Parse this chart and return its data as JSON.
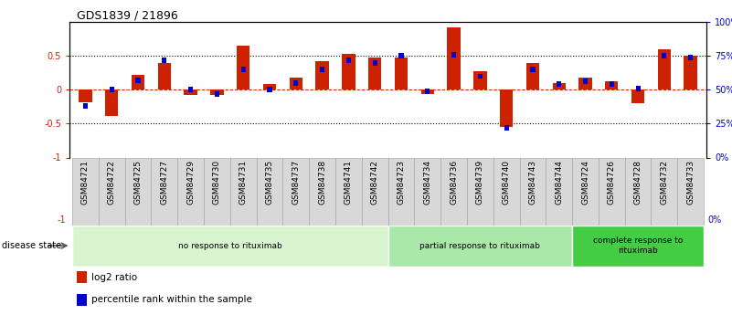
{
  "title": "GDS1839 / 21896",
  "samples": [
    "GSM84721",
    "GSM84722",
    "GSM84725",
    "GSM84727",
    "GSM84729",
    "GSM84730",
    "GSM84731",
    "GSM84735",
    "GSM84737",
    "GSM84738",
    "GSM84741",
    "GSM84742",
    "GSM84723",
    "GSM84734",
    "GSM84736",
    "GSM84739",
    "GSM84740",
    "GSM84743",
    "GSM84744",
    "GSM84724",
    "GSM84726",
    "GSM84728",
    "GSM84732",
    "GSM84733"
  ],
  "log2_ratio": [
    -0.18,
    -0.38,
    0.22,
    0.4,
    -0.07,
    -0.08,
    0.65,
    0.08,
    0.18,
    0.42,
    0.53,
    0.48,
    0.47,
    -0.06,
    0.92,
    0.27,
    -0.55,
    0.4,
    0.1,
    0.18,
    0.13,
    -0.2,
    0.6,
    0.5
  ],
  "percentile_rank": [
    38,
    50,
    57,
    72,
    50,
    47,
    65,
    50,
    55,
    65,
    72,
    70,
    75,
    49,
    76,
    60,
    22,
    65,
    54,
    56,
    54,
    51,
    75,
    74
  ],
  "groups": [
    {
      "label": "no response to rituximab",
      "start": 0,
      "end": 12,
      "color": "#d8f5d0"
    },
    {
      "label": "partial response to rituximab",
      "start": 12,
      "end": 19,
      "color": "#aae8aa"
    },
    {
      "label": "complete response to\nrituximab",
      "start": 19,
      "end": 24,
      "color": "#44cc44"
    }
  ],
  "bar_color_red": "#cc2200",
  "bar_color_blue": "#0000cc",
  "ylim_left": [
    -1.0,
    1.0
  ],
  "ylim_right": [
    0,
    100
  ],
  "yticks_left": [
    -1.0,
    -0.5,
    0.0,
    0.5
  ],
  "ytick_labels_left": [
    "-1",
    "-0.5",
    "0",
    "0.5"
  ],
  "yticks_right": [
    0,
    25,
    50,
    75,
    100
  ],
  "ytick_labels_right": [
    "0%",
    "25%",
    "50%",
    "75%",
    "100%"
  ],
  "hlines_dotted": [
    0.5,
    -0.5
  ],
  "disease_state_label": "disease state",
  "legend_items": [
    {
      "label": "log2 ratio",
      "color": "#cc2200"
    },
    {
      "label": "percentile rank within the sample",
      "color": "#0000cc"
    }
  ]
}
